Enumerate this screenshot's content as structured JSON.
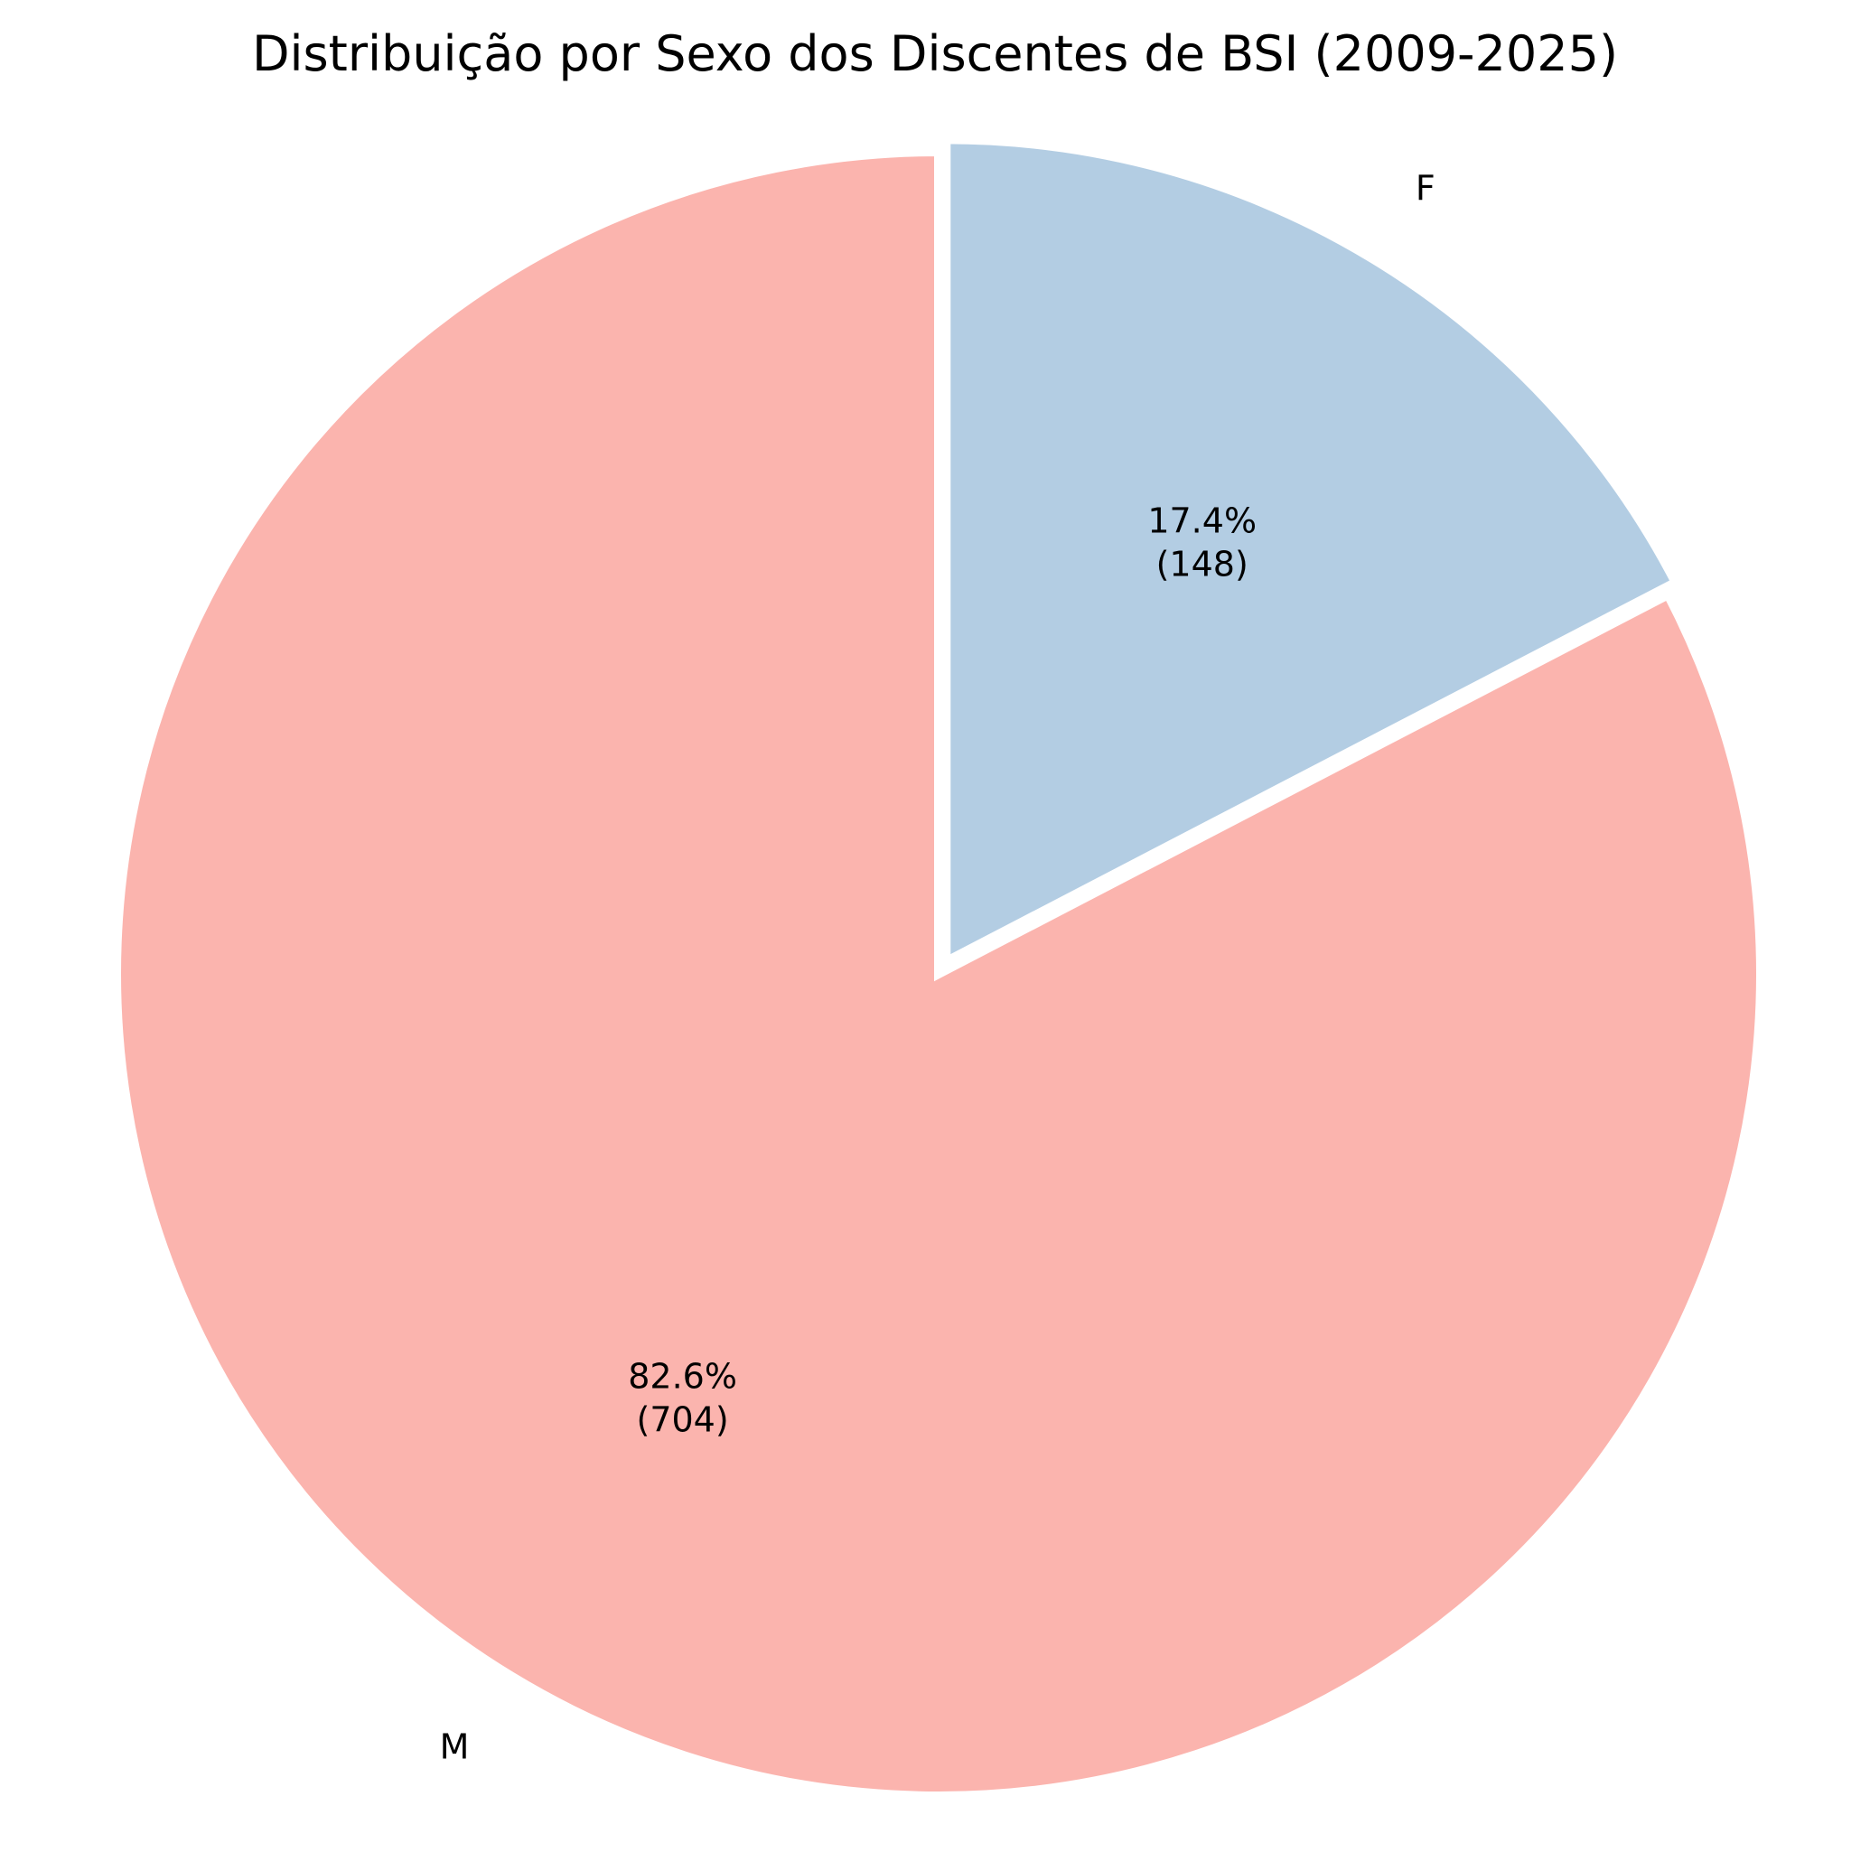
{
  "chart_data": {
    "type": "pie",
    "title": "Distribuição por Sexo dos Discentes de BSI (2009-2025)",
    "slices": [
      {
        "label": "F",
        "value": 148,
        "percent": "17.4%",
        "count_text": "(148)",
        "color": "#b3cde3",
        "exploded": true
      },
      {
        "label": "M",
        "value": 704,
        "percent": "82.6%",
        "count_text": "(704)",
        "color": "#fbb4ae",
        "exploded": false
      }
    ],
    "start_angle_deg": 90,
    "direction": "clockwise",
    "edge_color": "#ffffff"
  }
}
